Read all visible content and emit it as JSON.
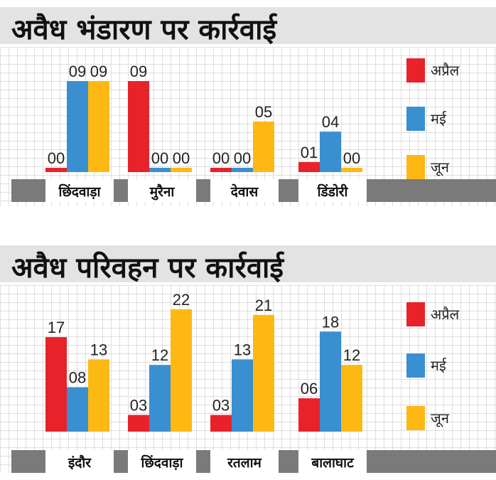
{
  "colors": {
    "apr": "#e8222a",
    "may": "#3a8fd0",
    "jun": "#fdb813",
    "base": "#7a7a7a",
    "title_bg": "#e3e3e3"
  },
  "chart_data": [
    {
      "type": "bar",
      "title": "अवैध भंडारण पर कार्रवाई",
      "categories": [
        "छिंदवाड़ा",
        "मुरैना",
        "देवास",
        "डिंडोरी"
      ],
      "series": [
        {
          "name": "अप्रैल",
          "values": [
            0,
            9,
            0,
            1
          ],
          "labels": [
            "00",
            "09",
            "00",
            "01"
          ]
        },
        {
          "name": "मई",
          "values": [
            9,
            0,
            0,
            4
          ],
          "labels": [
            "09",
            "00",
            "00",
            "04"
          ]
        },
        {
          "name": "जून",
          "values": [
            9,
            0,
            5,
            0
          ],
          "labels": [
            "09",
            "00",
            "05",
            "00"
          ]
        }
      ],
      "ylim": [
        0,
        9
      ],
      "legend_position": "right",
      "grid": true
    },
    {
      "type": "bar",
      "title": "अवैध परिवहन पर कार्रवाई",
      "categories": [
        "इंदौर",
        "छिंदवाड़ा",
        "रतलाम",
        "बालाघाट"
      ],
      "series": [
        {
          "name": "अप्रैल",
          "values": [
            17,
            3,
            3,
            6
          ],
          "labels": [
            "17",
            "03",
            "03",
            "06"
          ]
        },
        {
          "name": "मई",
          "values": [
            8,
            12,
            13,
            18
          ],
          "labels": [
            "08",
            "12",
            "13",
            "18"
          ]
        },
        {
          "name": "जून",
          "values": [
            13,
            22,
            21,
            12
          ],
          "labels": [
            "13",
            "22",
            "21",
            "12"
          ]
        }
      ],
      "ylim": [
        0,
        22
      ],
      "legend_position": "right",
      "grid": true
    }
  ]
}
